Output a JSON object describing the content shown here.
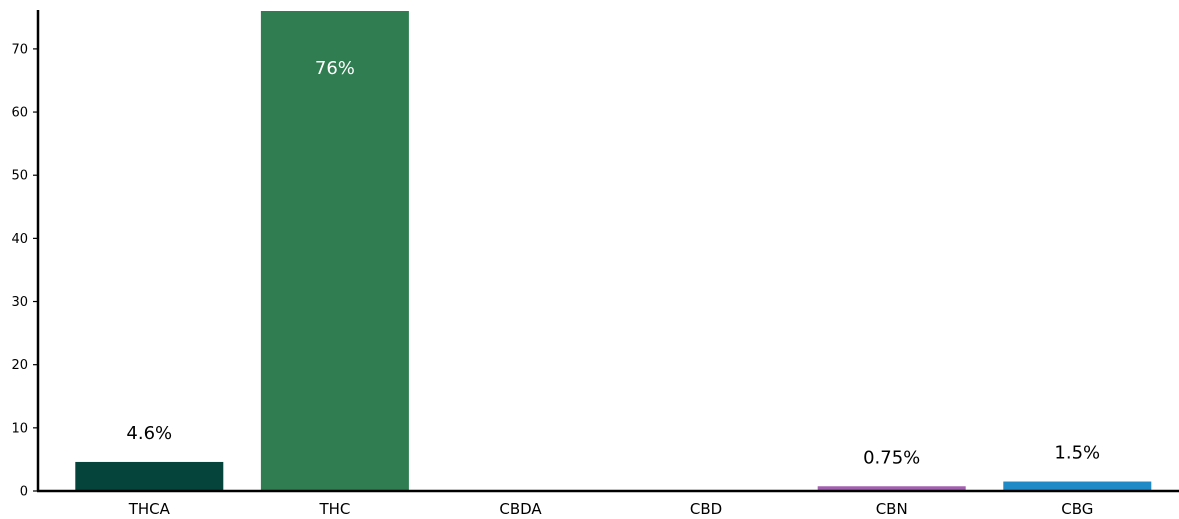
{
  "chart_data": {
    "type": "bar",
    "categories": [
      "THCA",
      "THC",
      "CBDA",
      "CBD",
      "CBN",
      "CBG"
    ],
    "values": [
      4.6,
      76,
      0,
      0,
      0.75,
      1.5
    ],
    "data_labels": [
      "4.6%",
      "76%",
      "",
      "",
      "0.75%",
      "1.5%"
    ],
    "colors": [
      "#05443b",
      "#307d51",
      "#307d51",
      "#307d51",
      "#a35fb0",
      "#1f8ac6"
    ],
    "label_inside": [
      false,
      true,
      false,
      false,
      false,
      false
    ],
    "ylim": [
      0,
      76
    ],
    "yticks": [
      0,
      10,
      20,
      30,
      40,
      50,
      60,
      70
    ],
    "title": "",
    "xlabel": "",
    "ylabel": "",
    "grid": false,
    "legend": false
  }
}
